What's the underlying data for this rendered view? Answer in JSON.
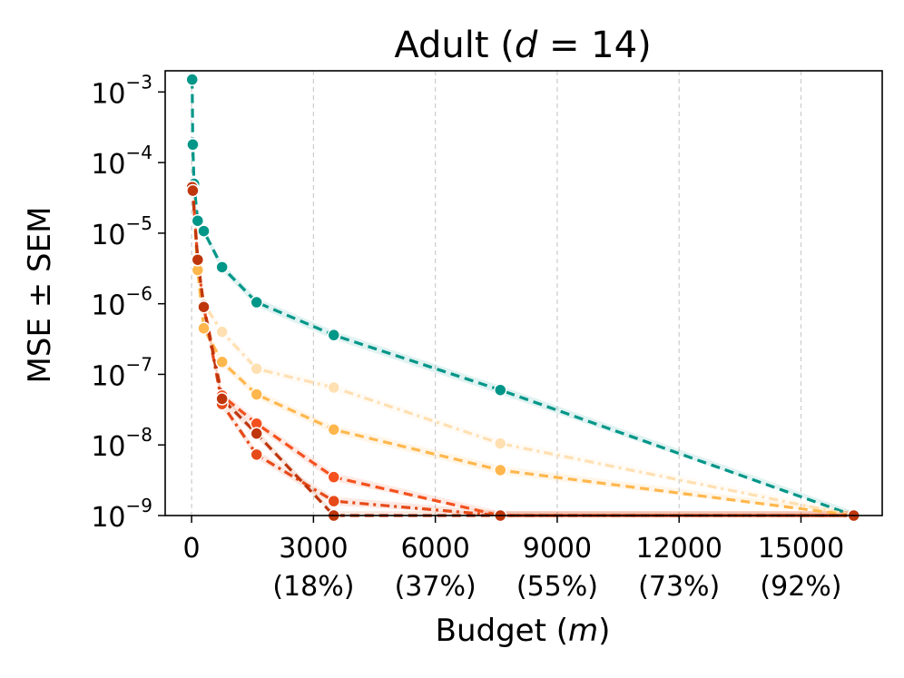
{
  "chart_data": {
    "type": "line",
    "title": {
      "prefix": "Adult (",
      "variable": "d",
      "suffix": " = 14)"
    },
    "xlabel": {
      "prefix": "Budget (",
      "variable": "m",
      "suffix": ")"
    },
    "ylabel": "MSE ± SEM",
    "yscale": "log",
    "xlim": [
      -650,
      17000
    ],
    "ylim_log10": [
      -9,
      -2.7
    ],
    "grid": "vertical-dashed",
    "x_ticks": [
      {
        "value": 0,
        "label": "0",
        "sublabel": ""
      },
      {
        "value": 3000,
        "label": "3000",
        "sublabel": "(18%)"
      },
      {
        "value": 6000,
        "label": "6000",
        "sublabel": "(37%)"
      },
      {
        "value": 9000,
        "label": "9000",
        "sublabel": "(55%)"
      },
      {
        "value": 12000,
        "label": "12000",
        "sublabel": "(73%)"
      },
      {
        "value": 15000,
        "label": "15000",
        "sublabel": "(92%)"
      }
    ],
    "y_ticks": [
      {
        "exp": -3,
        "base": "10",
        "sup": "−3"
      },
      {
        "exp": -4,
        "base": "10",
        "sup": "−4"
      },
      {
        "exp": -5,
        "base": "10",
        "sup": "−5"
      },
      {
        "exp": -6,
        "base": "10",
        "sup": "−6"
      },
      {
        "exp": -7,
        "base": "10",
        "sup": "−7"
      },
      {
        "exp": -8,
        "base": "10",
        "sup": "−8"
      },
      {
        "exp": -9,
        "base": "10",
        "sup": "−9"
      }
    ],
    "series": [
      {
        "color": "#009688",
        "dash": "10,6",
        "x": [
          14,
          30,
          60,
          150,
          300,
          750,
          1600,
          3500,
          7600,
          16300
        ],
        "y": [
          0.0015,
          0.00018,
          5e-05,
          1.5e-05,
          1.07e-05,
          3.3e-06,
          1.05e-06,
          3.6e-07,
          6e-08,
          1e-09
        ]
      },
      {
        "color": "#FFE0B2",
        "dash": "10,5,3,5",
        "x": [
          14,
          30,
          150,
          300,
          750,
          1600,
          3500,
          7600,
          16300
        ],
        "y": [
          4.5e-05,
          4e-05,
          4.2e-06,
          1e-06,
          4e-07,
          1.2e-07,
          6.5e-08,
          1.05e-08,
          1e-09
        ]
      },
      {
        "color": "#FFB74D",
        "dash": "10,6",
        "x": [
          14,
          30,
          150,
          300,
          750,
          1600,
          3500,
          7600,
          16300
        ],
        "y": [
          4.5e-05,
          4e-05,
          3e-06,
          4.5e-07,
          1.5e-07,
          5.2e-08,
          1.65e-08,
          4.4e-09,
          1e-09
        ]
      },
      {
        "color": "#F4511E",
        "dash": "10,6",
        "x": [
          14,
          30,
          150,
          300,
          750,
          1600,
          3500,
          7600,
          16300
        ],
        "y": [
          4.5e-05,
          4e-05,
          4.2e-06,
          9.5e-07,
          5e-08,
          2e-08,
          3.5e-09,
          1e-09,
          1e-09
        ]
      },
      {
        "color": "#E64A19",
        "dash": "10,5,3,5",
        "x": [
          14,
          30,
          150,
          300,
          750,
          1600,
          3500,
          7600,
          16300
        ],
        "y": [
          4.5e-05,
          4e-05,
          4.2e-06,
          9e-07,
          3.8e-08,
          7.3e-09,
          1.6e-09,
          1e-09,
          1e-09
        ]
      },
      {
        "color": "#BF360C",
        "dash": "10,6",
        "x": [
          14,
          30,
          150,
          300,
          750,
          1600,
          3500,
          7600,
          16300
        ],
        "y": [
          4.5e-05,
          4e-05,
          4.2e-06,
          9e-07,
          4.5e-08,
          1.45e-08,
          1e-09,
          1e-09,
          1e-09
        ]
      }
    ]
  }
}
